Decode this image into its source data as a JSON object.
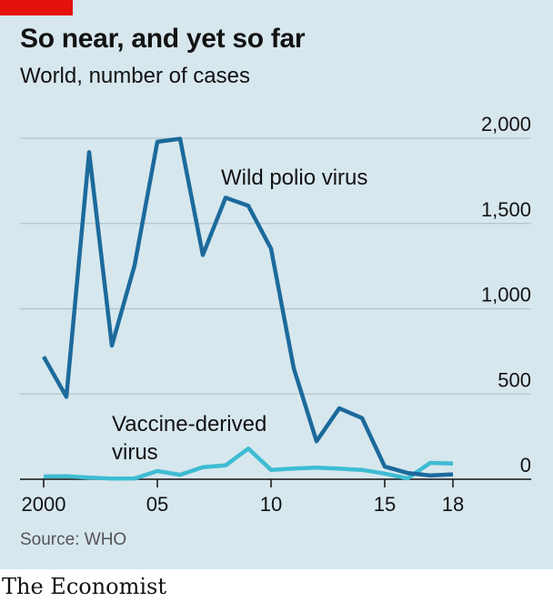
{
  "header": {
    "title": "So near, and yet so far",
    "subtitle": "World, number of cases"
  },
  "footer": {
    "source": "Source: WHO",
    "brand": "The Economist"
  },
  "colors": {
    "background": "#d7e7ee",
    "wild": "#1c6a9c",
    "vaccine": "#3ebcd2",
    "grid": "#b2c4cd",
    "accent": "#e3120b"
  },
  "chart_data": {
    "type": "line",
    "x": [
      2000,
      2001,
      2002,
      2003,
      2004,
      2005,
      2006,
      2007,
      2008,
      2009,
      2010,
      2011,
      2012,
      2013,
      2014,
      2015,
      2016,
      2017,
      2018
    ],
    "x_tick_values": [
      2000,
      2005,
      2010,
      2015,
      2018
    ],
    "x_tick_labels": [
      "2000",
      "05",
      "10",
      "15",
      "18"
    ],
    "ylim": [
      0,
      2000
    ],
    "y_ticks": [
      0,
      500,
      1000,
      1500,
      2000
    ],
    "y_tick_labels": [
      "0",
      "500",
      "1,000",
      "1,500",
      "2,000"
    ],
    "grid": true,
    "series": [
      {
        "name": "Wild polio virus",
        "color": "#1c6a9c",
        "values": [
          719,
          483,
          1918,
          784,
          1255,
          1979,
          1997,
          1315,
          1651,
          1604,
          1352,
          650,
          223,
          416,
          359,
          74,
          37,
          22,
          29
        ]
      },
      {
        "name": "Vaccine-derived virus",
        "color": "#3ebcd2",
        "values": [
          16,
          18,
          9,
          4,
          5,
          48,
          26,
          71,
          81,
          180,
          55,
          63,
          68,
          62,
          55,
          33,
          5,
          96,
          92
        ]
      }
    ]
  }
}
